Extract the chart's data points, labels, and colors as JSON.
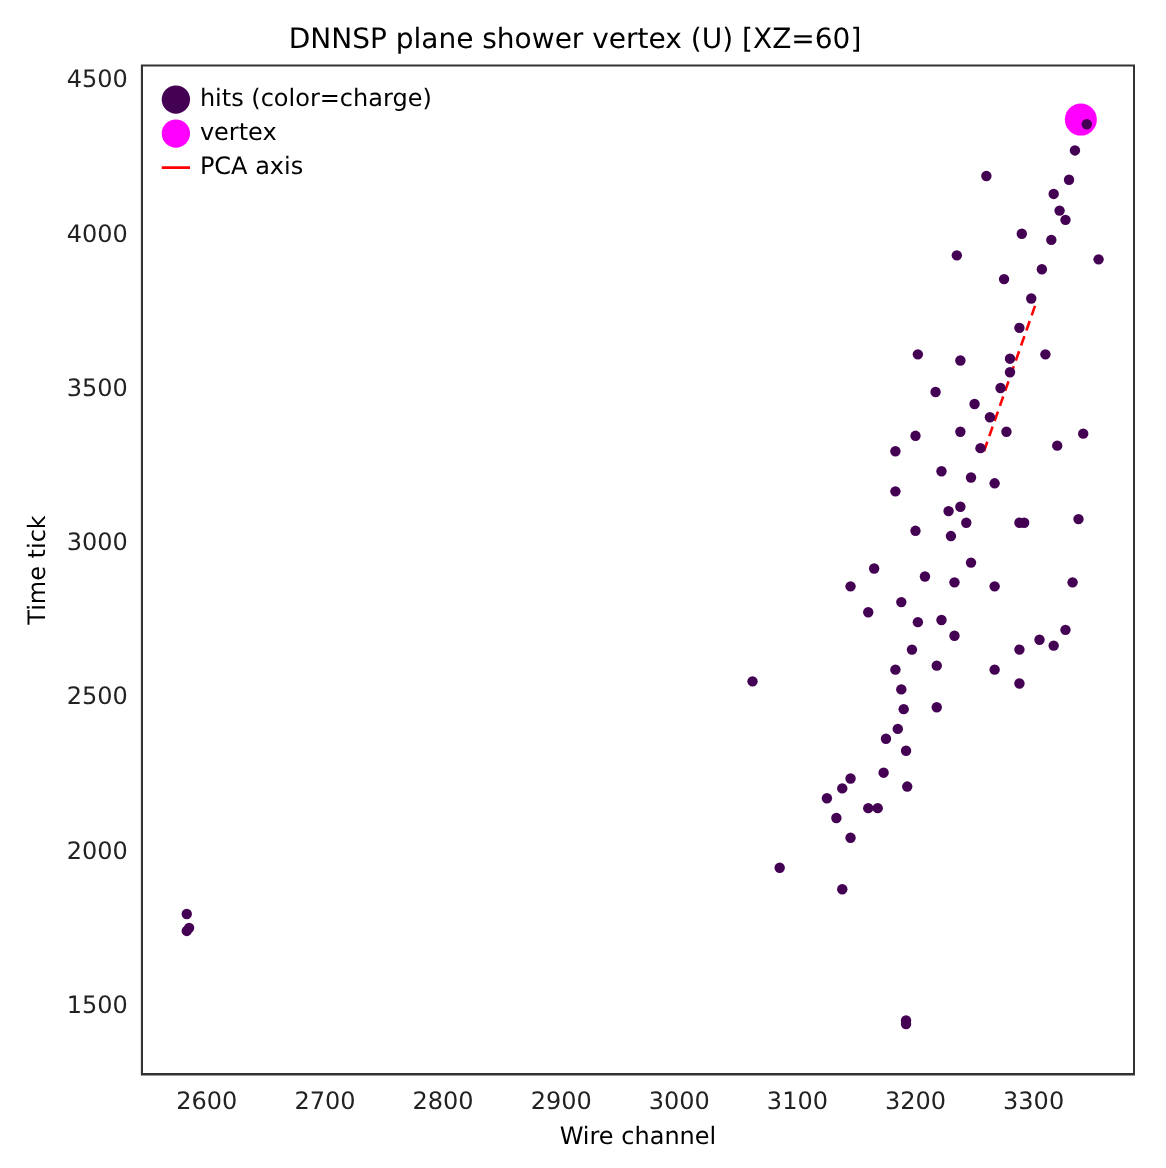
{
  "chart_data": {
    "type": "scatter",
    "title": "DNNSP plane shower vertex (U) [XZ=60]",
    "xlabel": "Wire channel",
    "ylabel": "Time tick",
    "xlim": [
      2545,
      3385
    ],
    "xticks": [
      2600,
      2700,
      2800,
      2900,
      3000,
      3100,
      3200,
      3300
    ],
    "ylim": [
      1280,
      4550
    ],
    "yticks": [
      1500,
      2000,
      2500,
      3000,
      3500,
      4000,
      4500
    ],
    "grid": false,
    "legend": "top left",
    "series": [
      {
        "name": "hits (color=charge)",
        "type": "scatter",
        "marker": "circle",
        "color": "#440154",
        "x": [
          3345,
          3335,
          3330,
          3322,
          3315,
          3307,
          3298,
          3288,
          3280,
          3272,
          3263,
          3255,
          3247,
          3238,
          3230,
          3260,
          3290,
          3235,
          3355,
          3202,
          3238,
          3217,
          3310,
          3342,
          3320,
          3200,
          3183,
          3183,
          3338,
          3200,
          3288,
          3275,
          3327,
          3317,
          3280,
          3250,
          3238,
          3277,
          3222,
          3267,
          3228,
          3243,
          3292,
          3165,
          3145,
          3160,
          3208,
          3233,
          3247,
          3267,
          3333,
          3188,
          3202,
          3222,
          3233,
          3197,
          3218,
          3267,
          3288,
          3305,
          3317,
          3327,
          3288,
          3062,
          3183,
          3188,
          3190,
          3218,
          3185,
          3175,
          3192,
          3173,
          3193,
          3145,
          3138,
          3125,
          3160,
          3168,
          3133,
          3145,
          3085,
          3138,
          3192,
          3192,
          2583,
          2583,
          2585
        ],
        "values": [
          4360,
          4275,
          4180,
          4080,
          3985,
          3890,
          3795,
          3700,
          3600,
          3505,
          3410,
          3310,
          3215,
          3120,
          3025,
          4192,
          4005,
          3935,
          3922,
          3614,
          3594,
          3492,
          3614,
          3357,
          3318,
          3350,
          3300,
          3170,
          3080,
          3042,
          3068,
          3858,
          4050,
          4134,
          3556,
          3453,
          3363,
          3363,
          3235,
          3196,
          3106,
          3068,
          3068,
          2920,
          2862,
          2778,
          2894,
          2875,
          2939,
          2862,
          2875,
          2811,
          2746,
          2753,
          2702,
          2657,
          2605,
          2592,
          2657,
          2689,
          2670,
          2721,
          2547,
          2554,
          2592,
          2528,
          2464,
          2470,
          2400,
          2368,
          2329,
          2258,
          2213,
          2239,
          2207,
          2175,
          2143,
          2143,
          2111,
          2047,
          1950,
          1880,
          1443,
          1455,
          1800,
          1745,
          1755
        ]
      },
      {
        "name": "vertex",
        "type": "scatter",
        "marker": "circle",
        "color": "#ff00ff",
        "x": [
          3340
        ],
        "values": [
          4375
        ]
      },
      {
        "name": "PCA axis",
        "type": "line",
        "line_style": "dashed",
        "marker": "none",
        "color": "#ff0000",
        "x": [
          3258,
          3302
        ],
        "values": [
          3300,
          3780
        ]
      }
    ]
  }
}
